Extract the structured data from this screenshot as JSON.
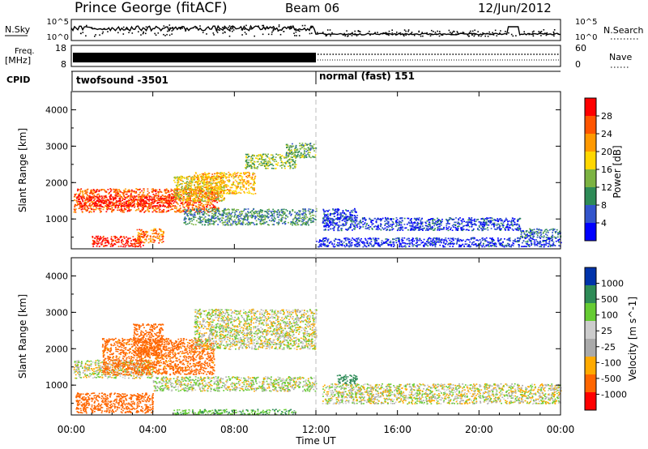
{
  "header": {
    "station": "Prince George (fitACF)",
    "beam": "Beam 06",
    "date": "12/Jun/2012"
  },
  "noise_panel": {
    "left_label": "N.Sky",
    "right_label": "N.Search",
    "left_ticks": [
      "10^5",
      "10^0"
    ],
    "right_ticks": [
      "10^5",
      "10^0"
    ]
  },
  "freq_panel": {
    "left_label_1": "Freq.",
    "left_label_2": "[MHz]",
    "left_ticks": [
      "18",
      "8"
    ],
    "right_label": "Nave",
    "right_ticks": [
      "60",
      "0"
    ]
  },
  "cpid_panel": {
    "label": "CPID",
    "segments": [
      {
        "name": "twofsound -3501",
        "start_hour": 0,
        "end_hour": 12
      },
      {
        "name": "normal (fast) 151",
        "start_hour": 12,
        "end_hour": 24
      }
    ]
  },
  "colors": {
    "power_scale": [
      "#0000ff",
      "#3355cc",
      "#2e8b57",
      "#7cb342",
      "#ffd700",
      "#ff9900",
      "#ff5500",
      "#ff0000"
    ],
    "velocity_scale": [
      "#ff0000",
      "#ff6600",
      "#ffaa00",
      "#aaaaaa",
      "#cccccc",
      "#66cc33",
      "#2e8b57",
      "#0033aa"
    ]
  },
  "chart_data": [
    {
      "type": "heatmap",
      "quantity": "Power",
      "ylabel": "Slant Range [km]",
      "yticks": [
        1000,
        2000,
        3000,
        4000
      ],
      "ylim": [
        180,
        4500
      ],
      "xlim": [
        0,
        24
      ],
      "colorbar_label": "Power [dB]",
      "colorbar_ticks": [
        "28",
        "24",
        "20",
        "16",
        "12",
        "8",
        "4"
      ],
      "colorbar_range": [
        0,
        32
      ],
      "regions": [
        {
          "x0": 0.1,
          "x1": 7.2,
          "y0": 1200,
          "y1": 1850,
          "value": 26
        },
        {
          "x0": 0.3,
          "x1": 5.0,
          "y0": 1350,
          "y1": 1650,
          "value": 30
        },
        {
          "x0": 1.0,
          "x1": 3.5,
          "y0": 250,
          "y1": 550,
          "value": 29
        },
        {
          "x0": 3.2,
          "x1": 4.5,
          "y0": 350,
          "y1": 750,
          "value": 24
        },
        {
          "x0": 5.0,
          "x1": 7.5,
          "y0": 1500,
          "y1": 2200,
          "value": 18
        },
        {
          "x0": 6.0,
          "x1": 9.0,
          "y0": 1700,
          "y1": 2300,
          "value": 20
        },
        {
          "x0": 8.5,
          "x1": 11.0,
          "y0": 2400,
          "y1": 2800,
          "value": 14
        },
        {
          "x0": 10.5,
          "x1": 12.0,
          "y0": 2700,
          "y1": 3100,
          "value": 12
        },
        {
          "x0": 5.5,
          "x1": 12.0,
          "y0": 850,
          "y1": 1300,
          "value": 10
        },
        {
          "x0": 12.3,
          "x1": 22.0,
          "y0": 700,
          "y1": 1050,
          "value": 5
        },
        {
          "x0": 22.0,
          "x1": 24.0,
          "y0": 500,
          "y1": 750,
          "value": 8
        },
        {
          "x0": 12.3,
          "x1": 14.0,
          "y0": 950,
          "y1": 1300,
          "value": 5
        },
        {
          "x0": 12.0,
          "x1": 24.0,
          "y0": 250,
          "y1": 500,
          "value": 4
        }
      ]
    },
    {
      "type": "heatmap",
      "quantity": "Velocity",
      "ylabel": "Slant Range [km]",
      "yticks": [
        1000,
        2000,
        3000,
        4000
      ],
      "ylim": [
        180,
        4500
      ],
      "xlim": [
        0,
        24
      ],
      "xlabel": "Time UT",
      "xticks": [
        "00:00",
        "04:00",
        "08:00",
        "12:00",
        "16:00",
        "20:00",
        "00:00"
      ],
      "colorbar_label": "Velocity [m s^-1]",
      "colorbar_ticks": [
        "1000",
        "500",
        "100",
        "25",
        "-25",
        "-100",
        "-500",
        "-1000"
      ],
      "colorbar_range": [
        -1200,
        1200
      ],
      "regions": [
        {
          "x0": 0.1,
          "x1": 4.0,
          "y0": 1200,
          "y1": 1700,
          "value": 0
        },
        {
          "x0": 1.5,
          "x1": 7.0,
          "y0": 1300,
          "y1": 2300,
          "value": -150
        },
        {
          "x0": 0.2,
          "x1": 4.0,
          "y0": 250,
          "y1": 800,
          "value": -200
        },
        {
          "x0": 3.0,
          "x1": 4.5,
          "y0": 1800,
          "y1": 2700,
          "value": -300
        },
        {
          "x0": 6.0,
          "x1": 12.0,
          "y0": 2000,
          "y1": 3100,
          "value": 0
        },
        {
          "x0": 4.0,
          "x1": 12.0,
          "y0": 850,
          "y1": 1250,
          "value": 10
        },
        {
          "x0": 12.3,
          "x1": 24.0,
          "y0": 500,
          "y1": 1050,
          "value": 0
        },
        {
          "x0": 13.0,
          "x1": 14.0,
          "y0": 1050,
          "y1": 1300,
          "value": 300
        },
        {
          "x0": 5.0,
          "x1": 11.0,
          "y0": 200,
          "y1": 350,
          "value": 80
        }
      ]
    }
  ]
}
